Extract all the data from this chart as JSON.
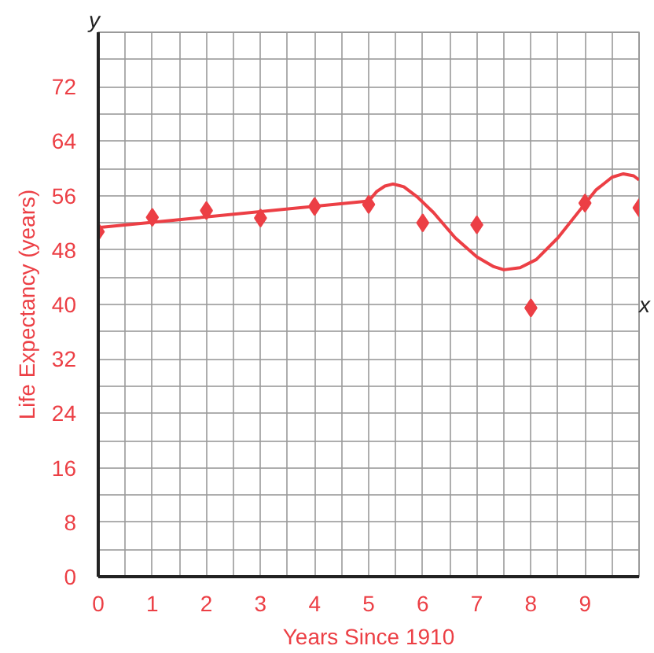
{
  "chart_data": {
    "type": "scatter",
    "xlabel": "Years Since 1910",
    "ylabel": "Life Expectancy (years)",
    "annotations": [
      "x",
      "y"
    ],
    "xlim": [
      0,
      10
    ],
    "ylim": [
      0,
      80
    ],
    "xticks": [
      0,
      {
        "value": 0.5,
        "label": null
      },
      1,
      {
        "value": 1.5,
        "label": null
      },
      2,
      {
        "value": 2.5,
        "label": null
      },
      3,
      {
        "value": 3.5,
        "label": null
      },
      4,
      {
        "value": 4.5,
        "label": null
      },
      5,
      {
        "value": 5.5,
        "label": null
      },
      6,
      {
        "value": 6.5,
        "label": null
      },
      7,
      {
        "value": 7.5,
        "label": null
      },
      8,
      {
        "value": 8.5,
        "label": null
      },
      9,
      {
        "value": 9.5,
        "label": null
      }
    ],
    "yticks": [
      0,
      {
        "value": 4,
        "label": null
      },
      8,
      {
        "value": 12,
        "label": null
      },
      16,
      {
        "value": 20,
        "label": null
      },
      24,
      {
        "value": 28,
        "label": null
      },
      32,
      {
        "value": 36,
        "label": null
      },
      40,
      {
        "value": 44,
        "label": null
      },
      48,
      {
        "value": 52,
        "label": null
      },
      56,
      {
        "value": 60,
        "label": null
      },
      64,
      {
        "value": 68,
        "label": null
      },
      72,
      {
        "value": 76,
        "label": null
      }
    ],
    "grid": true,
    "series": [
      {
        "color": "#ec3f45",
        "marker": "diamond",
        "x": [
          0,
          1,
          2,
          3,
          4,
          5,
          6,
          7,
          8,
          9,
          10
        ],
        "values": [
          50.7,
          52.8,
          53.8,
          52.7,
          54.4,
          54.7,
          52.0,
          51.7,
          39.5,
          54.9,
          54.2
        ]
      },
      {
        "type": "line",
        "color": "#ec3f45",
        "line_style": "solid",
        "x": [
          0,
          5,
          5.15,
          5.3,
          5.45,
          5.65,
          5.9,
          6.2,
          6.6,
          7.0,
          7.3,
          7.5,
          7.8,
          8.1,
          8.5,
          8.9,
          9.2,
          9.5,
          9.71,
          9.9,
          10
        ],
        "values": [
          51.3,
          55.2,
          56.6,
          57.4,
          57.7,
          57.3,
          55.8,
          53.5,
          49.8,
          47.0,
          45.6,
          45.1,
          45.4,
          46.6,
          49.8,
          53.8,
          56.8,
          58.7,
          59.2,
          58.9,
          58.3
        ]
      }
    ]
  }
}
